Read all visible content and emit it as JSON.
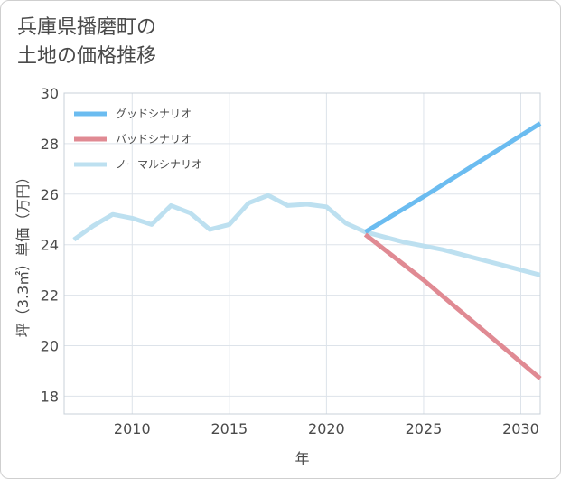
{
  "title_lines": [
    "兵庫県播磨町の",
    "土地の価格推移"
  ],
  "chart_data": {
    "type": "line",
    "xlabel": "年",
    "ylabel": "坪（3.3㎡）単価（万円）",
    "xlim": [
      2006.5,
      2031
    ],
    "ylim": [
      17.3,
      30
    ],
    "xticks": [
      2010,
      2015,
      2020,
      2025,
      2030
    ],
    "yticks": [
      18,
      20,
      22,
      24,
      26,
      28,
      30
    ],
    "grid": true,
    "legend_position": "top-left",
    "series": [
      {
        "name": "グッドシナリオ",
        "color": "#6bbcf0",
        "x": [
          2022,
          2025,
          2031
        ],
        "y": [
          24.5,
          25.9,
          28.8
        ]
      },
      {
        "name": "バッドシナリオ",
        "color": "#e08a93",
        "x": [
          2022,
          2025,
          2031
        ],
        "y": [
          24.4,
          22.6,
          18.7
        ]
      },
      {
        "name": "ノーマルシナリオ",
        "color": "#bde0f0",
        "x": [
          2007,
          2008,
          2009,
          2010,
          2011,
          2012,
          2013,
          2014,
          2015,
          2016,
          2017,
          2018,
          2019,
          2020,
          2021,
          2022,
          2023,
          2024,
          2025,
          2026,
          2027,
          2028,
          2029,
          2030,
          2031
        ],
        "y": [
          24.2,
          24.75,
          25.2,
          25.05,
          24.8,
          25.55,
          25.25,
          24.6,
          24.8,
          25.65,
          25.95,
          25.55,
          25.6,
          25.5,
          24.85,
          24.5,
          24.3,
          24.1,
          23.95,
          23.8,
          23.6,
          23.4,
          23.2,
          23.0,
          22.8
        ]
      }
    ]
  }
}
